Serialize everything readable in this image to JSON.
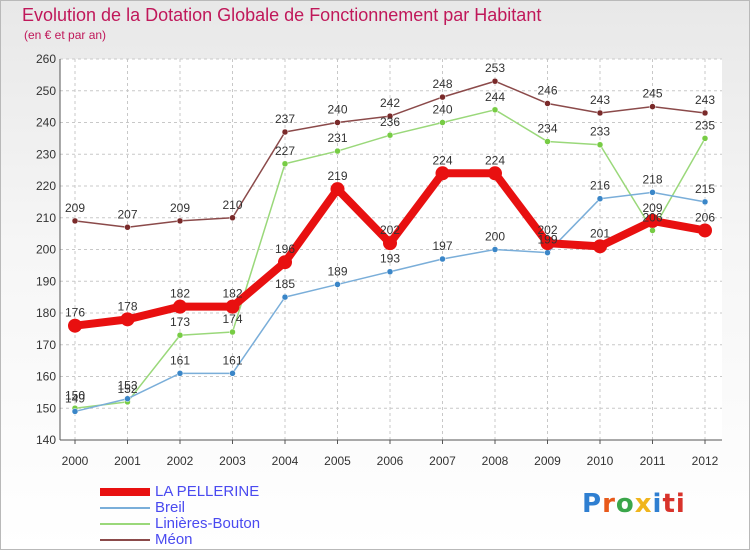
{
  "title": "Evolution de la Dotation Globale de Fonctionnement par Habitant",
  "subtitle": "(en € et par an)",
  "logo_text": "Proxiti",
  "logo_letters": [
    "P",
    "r",
    "o",
    "x",
    "i",
    "ti"
  ],
  "chart_data": {
    "type": "line",
    "title": "Evolution de la Dotation Globale de Fonctionnement par Habitant",
    "ylabel": "(en € et par an)",
    "xlabel": "",
    "x": [
      "2000",
      "2001",
      "2002",
      "2003",
      "2004",
      "2005",
      "2006",
      "2007",
      "2008",
      "2009",
      "2010",
      "2011",
      "2012"
    ],
    "ylim": [
      140,
      260
    ],
    "yticks": [
      140,
      150,
      160,
      170,
      180,
      190,
      200,
      210,
      220,
      230,
      240,
      250,
      260
    ],
    "grid": true,
    "legend_position": "bottom-left",
    "series": [
      {
        "name": "Méon",
        "color": "#7a2a2a",
        "line_color": "#8b4a4a",
        "values": [
          209,
          207,
          209,
          210,
          237,
          240,
          242,
          248,
          253,
          246,
          243,
          245,
          243
        ]
      },
      {
        "name": "Linières-Bouton",
        "color": "#77cc44",
        "line_color": "#9ad87a",
        "values": [
          150,
          152,
          173,
          174,
          227,
          231,
          236,
          240,
          244,
          234,
          233,
          206,
          235
        ]
      },
      {
        "name": "Breil",
        "color": "#3a86c8",
        "line_color": "#7aaed9",
        "values": [
          149,
          153,
          161,
          161,
          185,
          189,
          193,
          197,
          200,
          199,
          216,
          218,
          215
        ]
      },
      {
        "name": "LA PELLERINE",
        "color": "#e81010",
        "line_color": "#e81010",
        "values": [
          176,
          178,
          182,
          182,
          196,
          219,
          202,
          224,
          224,
          202,
          201,
          209,
          206
        ]
      }
    ]
  }
}
